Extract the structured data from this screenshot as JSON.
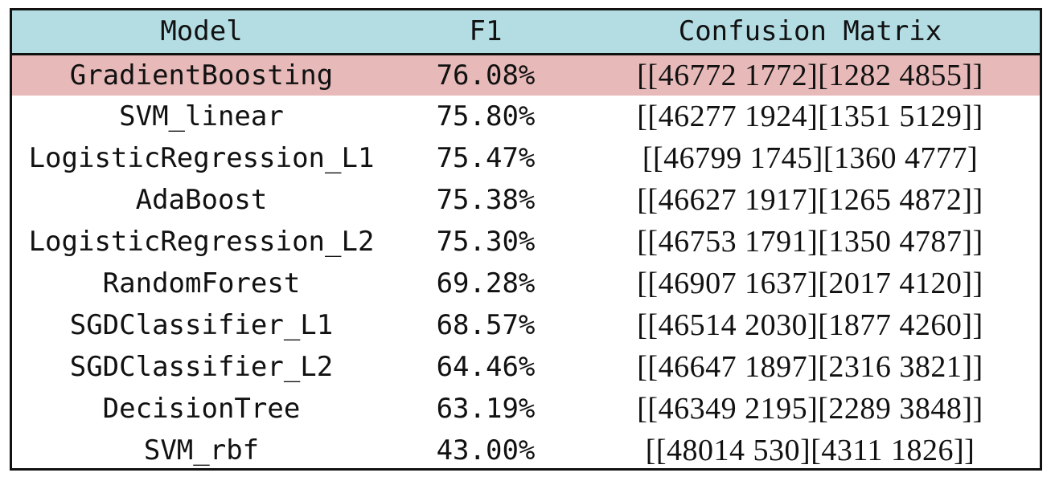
{
  "headers": {
    "model": "Model",
    "f1": "F1",
    "confusion": "Confusion Matrix"
  },
  "rows": [
    {
      "model": "GradientBoosting",
      "f1": "76.08%",
      "confusion": "[[46772 1772][1282 4855]]",
      "highlighted": true
    },
    {
      "model": "SVM_linear",
      "f1": "75.80%",
      "confusion": "[[46277 1924][1351 5129]]"
    },
    {
      "model": "LogisticRegression_L1",
      "f1": "75.47%",
      "confusion": "[[46799 1745][1360 4777]"
    },
    {
      "model": "AdaBoost",
      "f1": "75.38%",
      "confusion": "[[46627 1917][1265 4872]]"
    },
    {
      "model": "LogisticRegression_L2",
      "f1": "75.30%",
      "confusion": "[[46753 1791][1350 4787]]"
    },
    {
      "model": "RandomForest",
      "f1": "69.28%",
      "confusion": "[[46907 1637][2017 4120]]"
    },
    {
      "model": "SGDClassifier_L1",
      "f1": "68.57%",
      "confusion": "[[46514 2030][1877 4260]]"
    },
    {
      "model": "SGDClassifier_L2",
      "f1": "64.46%",
      "confusion": "[[46647 1897][2316 3821]]"
    },
    {
      "model": "DecisionTree",
      "f1": "63.19%",
      "confusion": "[[46349 2195][2289 3848]]"
    },
    {
      "model": "SVM_rbf",
      "f1": "43.00%",
      "confusion": "[[48014 530][4311 1826]]"
    }
  ],
  "colors": {
    "header_background": "#b3dce3",
    "highlight_background": "#e7b9b9",
    "border": "#111111"
  }
}
